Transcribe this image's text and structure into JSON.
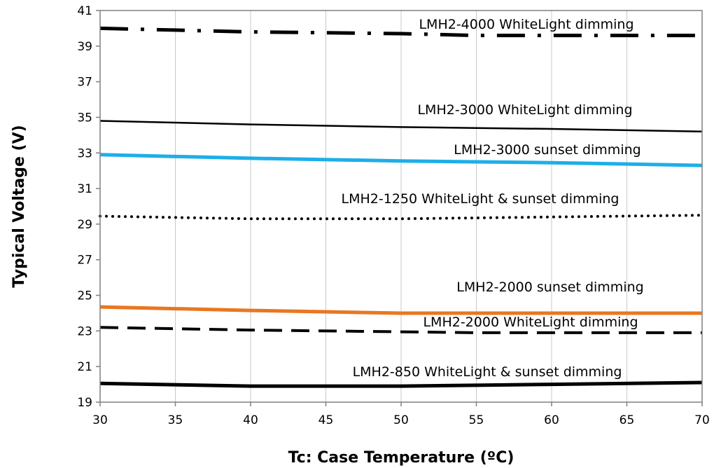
{
  "chart_data": {
    "type": "line",
    "xlabel": "Tc: Case Temperature (ºC)",
    "ylabel": "Typical Voltage (V)",
    "xlim": [
      30,
      70
    ],
    "ylim": [
      19,
      41
    ],
    "x_ticks": [
      "30",
      "35",
      "40",
      "45",
      "50",
      "55",
      "60",
      "65",
      "70"
    ],
    "y_ticks": [
      "19",
      "21",
      "23",
      "25",
      "27",
      "29",
      "31",
      "33",
      "35",
      "37",
      "39",
      "41"
    ],
    "grid": "vertical",
    "x": [
      30,
      40,
      50,
      55,
      60,
      70
    ],
    "series": [
      {
        "name": "LMH2-4000 WhiteLight dimming",
        "values": [
          40.0,
          39.8,
          39.7,
          39.6,
          39.6,
          39.6
        ],
        "color": "#000000",
        "style": "dash-dot"
      },
      {
        "name": "LMH2-3000 WhiteLight dimming",
        "values": [
          34.8,
          34.6,
          34.45,
          34.4,
          34.35,
          34.2
        ],
        "color": "#000000",
        "style": "solid-thin"
      },
      {
        "name": "LMH2-3000 sunset dimming",
        "values": [
          32.9,
          32.7,
          32.55,
          32.5,
          32.45,
          32.3
        ],
        "color": "#1eaee8",
        "style": "solid-thick"
      },
      {
        "name": "LMH2-1250 WhiteLight & sunset dimming",
        "values": [
          29.45,
          29.3,
          29.3,
          29.35,
          29.4,
          29.5
        ],
        "color": "#000000",
        "style": "dotted"
      },
      {
        "name": "LMH2-2000 sunset dimming",
        "values": [
          24.35,
          24.15,
          24.0,
          24.0,
          24.0,
          24.0
        ],
        "color": "#e87722",
        "style": "solid-thick"
      },
      {
        "name": "LMH2-2000 WhiteLight dimming",
        "values": [
          23.2,
          23.05,
          22.95,
          22.9,
          22.9,
          22.9
        ],
        "color": "#000000",
        "style": "dashed"
      },
      {
        "name": "LMH2-850 WhiteLight & sunset dimming",
        "values": [
          20.05,
          19.9,
          19.9,
          19.95,
          20.0,
          20.1
        ],
        "color": "#000000",
        "style": "solid-thick"
      }
    ]
  }
}
